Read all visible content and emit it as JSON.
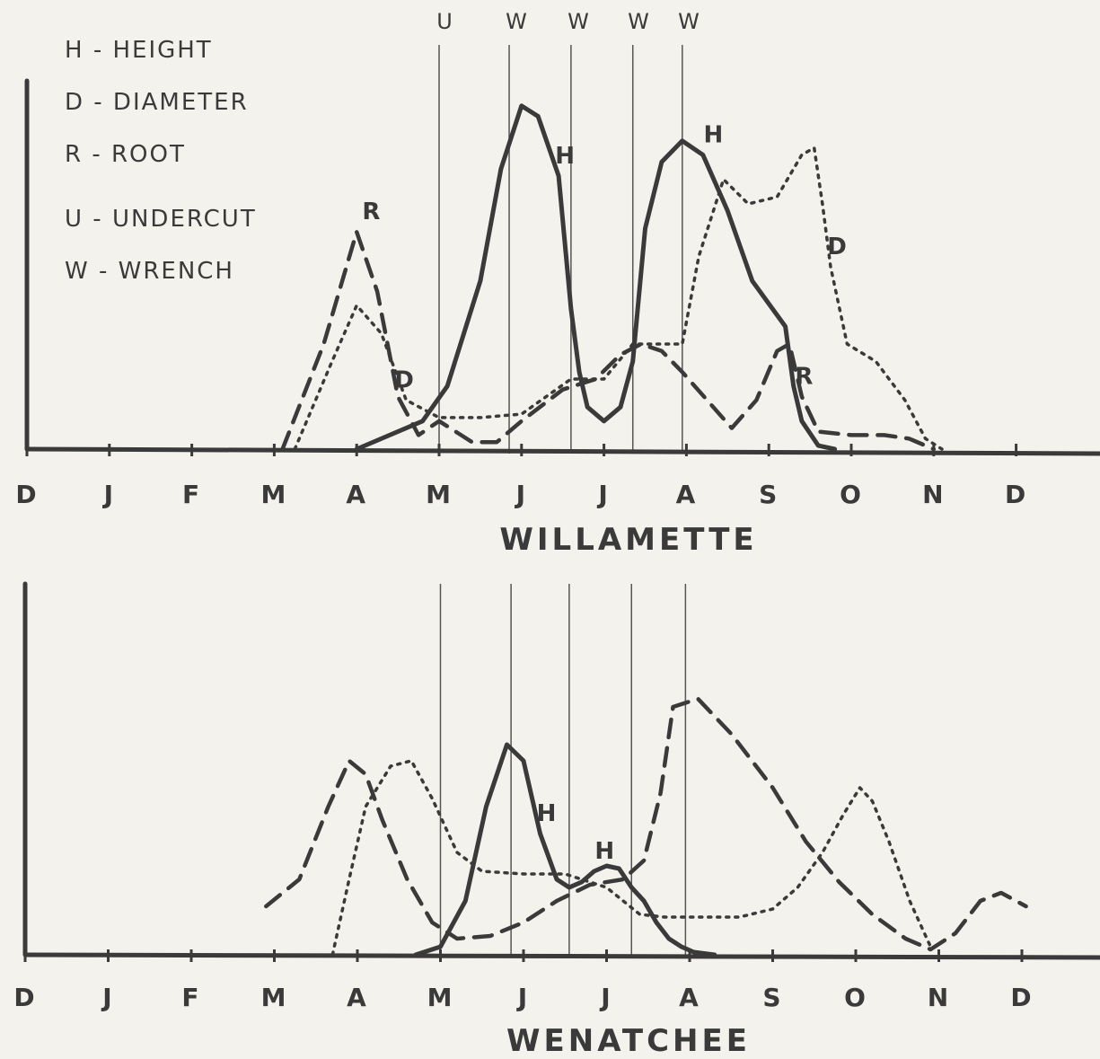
{
  "legend": [
    "H - HEIGHT",
    "D - DIAMETER",
    "R - ROOT",
    "U - UNDERCUT",
    "W - WRENCH"
  ],
  "treatments": [
    "U",
    "W",
    "W",
    "W",
    "W"
  ],
  "chart_data": [
    {
      "type": "line",
      "title": "WILLAMETTE",
      "categories": [
        "D",
        "J",
        "F",
        "M",
        "A",
        "M",
        "J",
        "J",
        "A",
        "S",
        "O",
        "N",
        "D"
      ],
      "x_unit": "month index (0 = D ... 12 = D)",
      "treatment_x": [
        5.0,
        5.85,
        6.6,
        7.35,
        7.95
      ],
      "ylim": [
        0,
        100
      ],
      "y_ticks": false,
      "grid": false,
      "legend_position": "top-left",
      "series": [
        {
          "name": "H",
          "style": "solid",
          "x": [
            4.0,
            4.8,
            5.1,
            5.5,
            5.75,
            6.0,
            6.2,
            6.45,
            6.6,
            6.7,
            6.8,
            7.0,
            7.2,
            7.35,
            7.5,
            7.7,
            7.95,
            8.2,
            8.5,
            8.8,
            9.2,
            9.3,
            9.4,
            9.6,
            9.8
          ],
          "y": [
            0,
            8,
            18,
            48,
            80,
            98,
            95,
            78,
            40,
            22,
            12,
            8,
            12,
            25,
            63,
            82,
            88,
            84,
            68,
            48,
            35,
            18,
            8,
            1,
            0
          ],
          "labels": [
            {
              "text": "H",
              "x": 6.45
            },
            {
              "text": "H",
              "x": 8.25
            }
          ]
        },
        {
          "name": "D",
          "style": "dotted",
          "x": [
            3.25,
            3.7,
            4.0,
            4.3,
            4.6,
            5.0,
            5.5,
            6.0,
            6.6,
            7.0,
            7.35,
            7.6,
            7.95,
            8.15,
            8.45,
            8.75,
            9.1,
            9.4,
            9.55,
            9.65,
            9.75,
            9.95,
            10.3,
            10.65,
            10.9,
            11.1
          ],
          "y": [
            0,
            25,
            41,
            33,
            14,
            9,
            9,
            10,
            20,
            20,
            30,
            30,
            30,
            55,
            77,
            70,
            72,
            84,
            86,
            70,
            52,
            30,
            25,
            14,
            3,
            0
          ],
          "labels": [
            {
              "text": "D",
              "x": 4.5
            },
            {
              "text": "D",
              "x": 9.75
            }
          ]
        },
        {
          "name": "R",
          "style": "dashed",
          "x": [
            3.1,
            3.6,
            4.0,
            4.25,
            4.5,
            4.75,
            5.0,
            5.2,
            5.4,
            5.7,
            6.0,
            6.5,
            6.9,
            7.2,
            7.45,
            7.7,
            7.95,
            8.25,
            8.55,
            8.85,
            9.1,
            9.25,
            9.4,
            9.6,
            10.0,
            10.4,
            10.7,
            11.0
          ],
          "y": [
            0,
            30,
            62,
            45,
            15,
            4,
            8,
            5,
            2,
            2,
            8,
            17,
            20,
            27,
            30,
            28,
            22,
            14,
            6,
            14,
            28,
            30,
            15,
            5,
            4,
            4,
            3,
            0
          ],
          "labels": [
            {
              "text": "R",
              "x": 4.1
            },
            {
              "text": "R",
              "x": 9.35
            }
          ]
        }
      ]
    },
    {
      "type": "line",
      "title": "WENATCHEE",
      "categories": [
        "D",
        "J",
        "F",
        "M",
        "A",
        "M",
        "J",
        "J",
        "A",
        "S",
        "O",
        "N",
        "D"
      ],
      "x_unit": "month index (0 = D ... 12 = D)",
      "treatment_x": [
        5.0,
        5.85,
        6.55,
        7.3,
        7.95
      ],
      "ylim": [
        0,
        100
      ],
      "y_ticks": false,
      "grid": false,
      "legend_position": "top-left",
      "series": [
        {
          "name": "H",
          "style": "solid",
          "x": [
            4.7,
            5.0,
            5.3,
            5.55,
            5.8,
            6.0,
            6.2,
            6.4,
            6.55,
            6.7,
            6.85,
            7.0,
            7.15,
            7.3,
            7.45,
            7.6,
            7.75,
            7.9,
            8.05,
            8.3
          ],
          "y": [
            0,
            3,
            20,
            55,
            78,
            72,
            45,
            28,
            25,
            27,
            31,
            33,
            32,
            25,
            20,
            12,
            6,
            3,
            1,
            0
          ],
          "labels": [
            {
              "text": "H",
              "x": 6.2
            },
            {
              "text": "H",
              "x": 6.9
            }
          ]
        },
        {
          "name": "D",
          "style": "dotted",
          "x": [
            3.7,
            3.9,
            4.1,
            4.4,
            4.65,
            4.9,
            5.2,
            5.5,
            6.0,
            6.5,
            7.0,
            7.4,
            7.7,
            8.1,
            8.6,
            9.0,
            9.3,
            9.6,
            9.85,
            10.05,
            10.2,
            10.4,
            10.65,
            10.9
          ],
          "y": [
            0,
            28,
            55,
            70,
            72,
            58,
            38,
            31,
            30,
            30,
            25,
            15,
            14,
            14,
            14,
            17,
            25,
            38,
            52,
            62,
            57,
            42,
            20,
            3
          ]
        },
        {
          "name": "R",
          "style": "dashed",
          "x": [
            2.9,
            3.3,
            3.65,
            3.9,
            4.1,
            4.3,
            4.6,
            4.9,
            5.2,
            5.6,
            6.0,
            6.4,
            6.8,
            7.2,
            7.45,
            7.65,
            7.8,
            8.1,
            8.5,
            9.0,
            9.4,
            9.8,
            10.2,
            10.6,
            10.9,
            11.2,
            11.5,
            11.75,
            12.05
          ],
          "y": [
            18,
            28,
            55,
            72,
            67,
            50,
            28,
            12,
            6,
            7,
            12,
            20,
            26,
            28,
            35,
            60,
            92,
            95,
            82,
            62,
            42,
            27,
            15,
            6,
            2,
            8,
            20,
            23,
            18
          ]
        }
      ]
    }
  ]
}
